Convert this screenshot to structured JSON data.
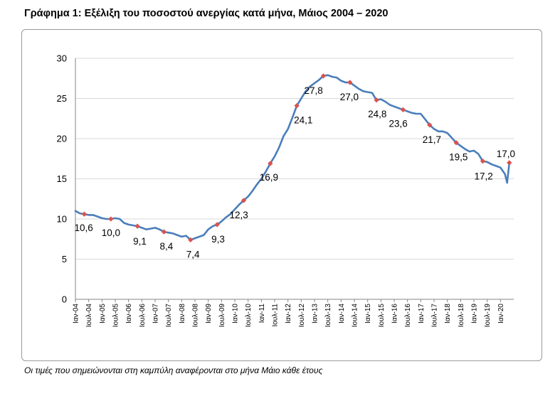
{
  "title": "Γράφημα 1: Εξέλιξη του ποσοστού ανεργίας κατά μήνα, Μάιος 2004 – 2020",
  "note": "Οι τιμές που σημειώνονται στη καμπύλη αναφέρονται στο μήνα Μάιο κάθε έτους",
  "colors": {
    "line": "#4a7ebb",
    "marker": "#d9534f",
    "axis": "#868686",
    "grid": "#d9d9d9"
  },
  "chart_data": {
    "type": "line",
    "title": "Γράφημα 1: Εξέλιξη του ποσοστού ανεργίας κατά μήνα, Μάιος 2004 – 2020",
    "xlabel": "",
    "ylabel": "",
    "ylim": [
      0,
      30
    ],
    "yticks": [
      0,
      5,
      10,
      15,
      20,
      25,
      30
    ],
    "grid": "horizontal",
    "legend": "none",
    "x_tick_labels": [
      "Ιαν-04",
      "Ιουλ-04",
      "Ιαν-05",
      "Ιουλ-05",
      "Ιαν-06",
      "Ιουλ-06",
      "Ιαν-07",
      "Ιουλ-07",
      "Ιαν-08",
      "Ιουλ-08",
      "Ιαν-09",
      "Ιουλ-09",
      "Ιαν-10",
      "Ιουλ-10",
      "Ιαν-11",
      "Ιουλ-11",
      "Ιαν-12",
      "Ιουλ-12",
      "Ιαν-13",
      "Ιουλ-13",
      "Ιαν-14",
      "Ιουλ-14",
      "Ιαν-15",
      "Ιουλ-15",
      "Ιαν-16",
      "Ιουλ-16",
      "Ιαν-17",
      "Ιουλ-17",
      "Ιαν-18",
      "Ιουλ-18",
      "Ιαν-19",
      "Ιουλ-19",
      "Ιαν-20"
    ],
    "series_monthly_points": [
      [
        "2004-01",
        11.0
      ],
      [
        "2004-03",
        10.7
      ],
      [
        "2004-05",
        10.6
      ],
      [
        "2004-07",
        10.5
      ],
      [
        "2004-09",
        10.5
      ],
      [
        "2004-11",
        10.3
      ],
      [
        "2005-01",
        10.1
      ],
      [
        "2005-03",
        10.0
      ],
      [
        "2005-05",
        10.0
      ],
      [
        "2005-07",
        10.1
      ],
      [
        "2005-09",
        10.0
      ],
      [
        "2005-11",
        9.5
      ],
      [
        "2006-01",
        9.3
      ],
      [
        "2006-03",
        9.2
      ],
      [
        "2006-05",
        9.1
      ],
      [
        "2006-07",
        8.9
      ],
      [
        "2006-09",
        8.7
      ],
      [
        "2006-11",
        8.8
      ],
      [
        "2007-01",
        8.9
      ],
      [
        "2007-03",
        8.7
      ],
      [
        "2007-05",
        8.4
      ],
      [
        "2007-07",
        8.3
      ],
      [
        "2007-09",
        8.2
      ],
      [
        "2007-11",
        8.0
      ],
      [
        "2008-01",
        7.8
      ],
      [
        "2008-03",
        7.9
      ],
      [
        "2008-05",
        7.4
      ],
      [
        "2008-07",
        7.6
      ],
      [
        "2008-09",
        7.8
      ],
      [
        "2008-11",
        8.0
      ],
      [
        "2009-01",
        8.7
      ],
      [
        "2009-03",
        9.1
      ],
      [
        "2009-05",
        9.3
      ],
      [
        "2009-07",
        9.7
      ],
      [
        "2009-09",
        10.2
      ],
      [
        "2009-11",
        10.6
      ],
      [
        "2010-01",
        11.2
      ],
      [
        "2010-03",
        11.8
      ],
      [
        "2010-05",
        12.3
      ],
      [
        "2010-07",
        12.8
      ],
      [
        "2010-09",
        13.5
      ],
      [
        "2010-11",
        14.3
      ],
      [
        "2011-01",
        15.0
      ],
      [
        "2011-03",
        15.9
      ],
      [
        "2011-05",
        16.9
      ],
      [
        "2011-07",
        17.8
      ],
      [
        "2011-09",
        18.9
      ],
      [
        "2011-11",
        20.3
      ],
      [
        "2012-01",
        21.2
      ],
      [
        "2012-03",
        22.6
      ],
      [
        "2012-05",
        24.1
      ],
      [
        "2012-07",
        25.0
      ],
      [
        "2012-09",
        25.9
      ],
      [
        "2012-11",
        26.5
      ],
      [
        "2013-01",
        26.9
      ],
      [
        "2013-03",
        27.3
      ],
      [
        "2013-05",
        27.8
      ],
      [
        "2013-07",
        27.9
      ],
      [
        "2013-09",
        27.7
      ],
      [
        "2013-11",
        27.6
      ],
      [
        "2014-01",
        27.2
      ],
      [
        "2014-03",
        27.0
      ],
      [
        "2014-05",
        27.0
      ],
      [
        "2014-07",
        26.6
      ],
      [
        "2014-09",
        26.2
      ],
      [
        "2014-11",
        25.9
      ],
      [
        "2015-01",
        25.8
      ],
      [
        "2015-03",
        25.7
      ],
      [
        "2015-05",
        24.8
      ],
      [
        "2015-07",
        24.9
      ],
      [
        "2015-09",
        24.6
      ],
      [
        "2015-11",
        24.2
      ],
      [
        "2016-01",
        24.0
      ],
      [
        "2016-03",
        23.8
      ],
      [
        "2016-05",
        23.6
      ],
      [
        "2016-07",
        23.4
      ],
      [
        "2016-09",
        23.2
      ],
      [
        "2016-11",
        23.1
      ],
      [
        "2017-01",
        23.1
      ],
      [
        "2017-03",
        22.4
      ],
      [
        "2017-05",
        21.7
      ],
      [
        "2017-07",
        21.2
      ],
      [
        "2017-09",
        20.9
      ],
      [
        "2017-11",
        20.9
      ],
      [
        "2018-01",
        20.7
      ],
      [
        "2018-03",
        20.1
      ],
      [
        "2018-05",
        19.5
      ],
      [
        "2018-07",
        19.1
      ],
      [
        "2018-09",
        18.7
      ],
      [
        "2018-11",
        18.4
      ],
      [
        "2019-01",
        18.5
      ],
      [
        "2019-03",
        18.1
      ],
      [
        "2019-05",
        17.2
      ],
      [
        "2019-07",
        17.1
      ],
      [
        "2019-09",
        16.8
      ],
      [
        "2019-11",
        16.6
      ],
      [
        "2020-01",
        16.4
      ],
      [
        "2020-03",
        15.6
      ],
      [
        "2020-04",
        14.5
      ],
      [
        "2020-05",
        17.0
      ]
    ],
    "may_labels": [
      {
        "x": "2004-05",
        "y": 10.6,
        "label": "10,6"
      },
      {
        "x": "2005-05",
        "y": 10.0,
        "label": "10,0"
      },
      {
        "x": "2006-05",
        "y": 9.1,
        "label": "9,1"
      },
      {
        "x": "2007-05",
        "y": 8.4,
        "label": "8,4"
      },
      {
        "x": "2008-05",
        "y": 7.4,
        "label": "7,4"
      },
      {
        "x": "2009-05",
        "y": 9.3,
        "label": "9,3"
      },
      {
        "x": "2010-05",
        "y": 12.3,
        "label": "12,3"
      },
      {
        "x": "2011-05",
        "y": 16.9,
        "label": "16,9"
      },
      {
        "x": "2012-05",
        "y": 24.1,
        "label": "24,1"
      },
      {
        "x": "2013-05",
        "y": 27.8,
        "label": "27,8"
      },
      {
        "x": "2014-05",
        "y": 27.0,
        "label": "27,0"
      },
      {
        "x": "2015-05",
        "y": 24.8,
        "label": "24,8"
      },
      {
        "x": "2016-05",
        "y": 23.6,
        "label": "23,6"
      },
      {
        "x": "2017-05",
        "y": 21.7,
        "label": "21,7"
      },
      {
        "x": "2018-05",
        "y": 19.5,
        "label": "19,5"
      },
      {
        "x": "2019-05",
        "y": 17.2,
        "label": "17,2"
      },
      {
        "x": "2020-05",
        "y": 17.0,
        "label": "17,0"
      }
    ]
  }
}
